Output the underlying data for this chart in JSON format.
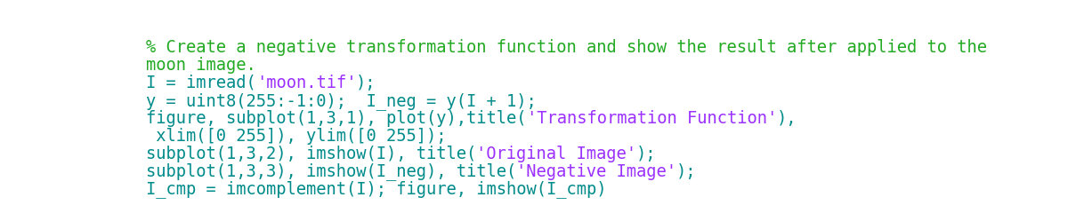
{
  "bg_color": "#ffffff",
  "lines": [
    {
      "segments": [
        {
          "text": "% Create a negative transformation function and show the result after applied to the",
          "color": "#22AA22"
        }
      ]
    },
    {
      "segments": [
        {
          "text": "moon image.",
          "color": "#22AA22"
        }
      ]
    },
    {
      "segments": [
        {
          "text": "I = imread(",
          "color": "#008B8B"
        },
        {
          "text": "'moon.tif'",
          "color": "#9B30FF"
        },
        {
          "text": ");",
          "color": "#008B8B"
        }
      ]
    },
    {
      "segments": [
        {
          "text": "y = uint8(255:-1:0);  I_neg = y(I + 1);",
          "color": "#008B8B"
        }
      ]
    },
    {
      "segments": [
        {
          "text": "figure, subplot(1,3,1), plot(y),title(",
          "color": "#008B8B"
        },
        {
          "text": "'Transformation Function'",
          "color": "#9B30FF"
        },
        {
          "text": "),",
          "color": "#008B8B"
        }
      ]
    },
    {
      "segments": [
        {
          "text": " xlim([0 255]), ylim([0 255]);",
          "color": "#008B8B"
        }
      ]
    },
    {
      "segments": [
        {
          "text": "subplot(1,3,2), imshow(I), title(",
          "color": "#008B8B"
        },
        {
          "text": "'Original Image'",
          "color": "#9B30FF"
        },
        {
          "text": ");",
          "color": "#008B8B"
        }
      ]
    },
    {
      "segments": [
        {
          "text": "subplot(1,3,3), imshow(I_neg), title(",
          "color": "#008B8B"
        },
        {
          "text": "'Negative Image'",
          "color": "#9B30FF"
        },
        {
          "text": ");",
          "color": "#008B8B"
        }
      ]
    },
    {
      "segments": [
        {
          "text": "I_cmp = imcomplement(I); figure, imshow(I_cmp)",
          "color": "#008B8B"
        }
      ]
    }
  ],
  "font_size": 13.5,
  "font_family": "DejaVu Sans Mono"
}
